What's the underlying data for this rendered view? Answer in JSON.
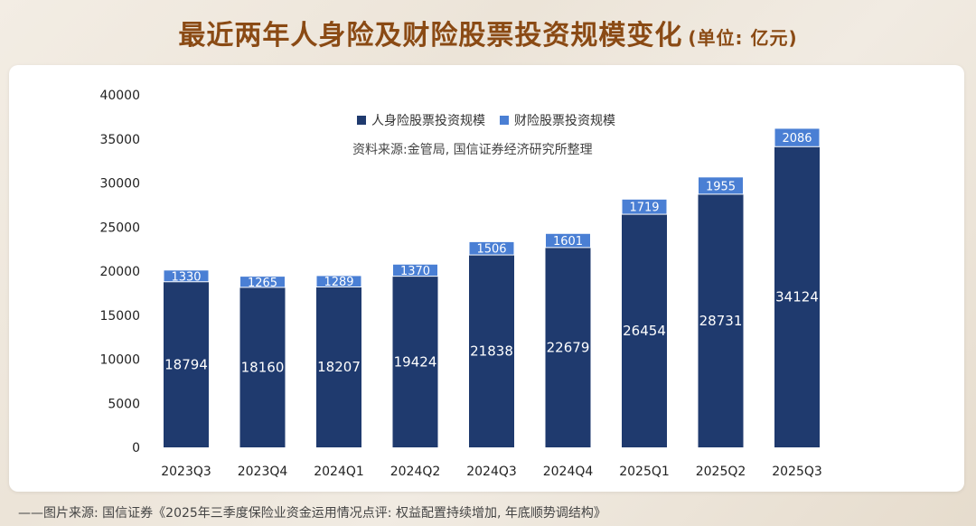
{
  "header": {
    "title": "最近两年人身险及财险股票投资规模变化",
    "unit": "(单位: 亿元)"
  },
  "footer": {
    "caption": "——图片来源: 国信证券《2025年三季度保险业资金运用情况点评: 权益配置持续增加, 年底顺势调结构》"
  },
  "chart_data": {
    "type": "bar",
    "stacked": true,
    "categories": [
      "2023Q3",
      "2023Q4",
      "2024Q1",
      "2024Q2",
      "2024Q3",
      "2024Q4",
      "2025Q1",
      "2025Q2",
      "2025Q3"
    ],
    "series": [
      {
        "name": "人身险股票投资规模",
        "color": "#1f3a6e",
        "values": [
          18794,
          18160,
          18207,
          19424,
          21838,
          22679,
          26454,
          28731,
          34124
        ]
      },
      {
        "name": "财险股票投资规模",
        "color": "#4a7fd4",
        "values": [
          1330,
          1265,
          1289,
          1370,
          1506,
          1601,
          1719,
          1955,
          2086
        ]
      }
    ],
    "ylim": [
      0,
      40000
    ],
    "yticks": [
      0,
      5000,
      10000,
      15000,
      20000,
      25000,
      30000,
      35000,
      40000
    ],
    "grid": false,
    "legend_position": "top-center",
    "source_note": "资料来源:金管局, 国信证券经济研究所整理"
  }
}
